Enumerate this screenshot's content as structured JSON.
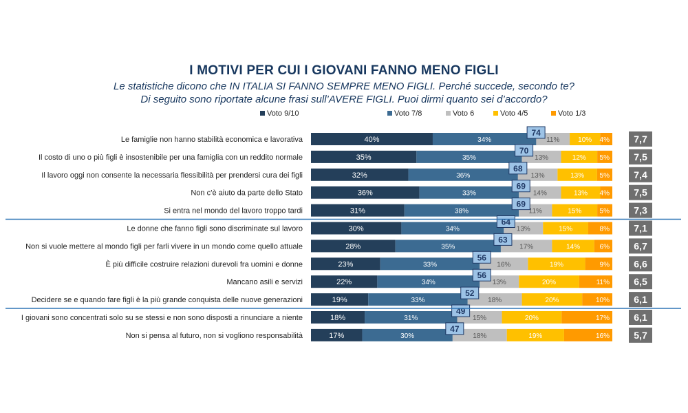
{
  "title": "I MOTIVI PER CUI I GIOVANI FANNO MENO FIGLI",
  "subtitle_line1": "Le statistiche dicono che IN ITALIA SI FANNO SEMPRE MENO FIGLI. Perché succede, secondo te?",
  "subtitle_line2": "Di seguito sono riportate alcune frasi sull’AVERE FIGLI. Puoi dirmi quanto sei d’accordo?",
  "chart_data": {
    "type": "bar",
    "stacked": "horizontal-100%",
    "legend_position": "top",
    "series": [
      {
        "name": "Voto 9/10",
        "color": "#243f5a"
      },
      {
        "name": "Voto 7/8",
        "color": "#3c6b92"
      },
      {
        "name": "Voto 6",
        "color": "#bfbfbf"
      },
      {
        "name": "Voto 4/5",
        "color": "#ffc000"
      },
      {
        "name": "Voto 1/3",
        "color": "#ff9a00"
      }
    ],
    "rows": [
      {
        "label": "Le famiglie non hanno stabilità economica e lavorativa",
        "values": [
          40,
          34,
          11,
          10,
          4
        ],
        "total": "74",
        "avg": "7,7"
      },
      {
        "label": "Il costo di uno o più figli è insostenibile per una famiglia con un reddito normale",
        "values": [
          35,
          35,
          13,
          12,
          5
        ],
        "total": "70",
        "avg": "7,5"
      },
      {
        "label": "Il lavoro oggi non consente la necessaria flessibilità per prendersi cura dei figli",
        "values": [
          32,
          36,
          13,
          13,
          5
        ],
        "total": "68",
        "avg": "7,4"
      },
      {
        "label": "Non c’è aiuto da parte dello Stato",
        "values": [
          36,
          33,
          14,
          13,
          4
        ],
        "total": "69",
        "avg": "7,5"
      },
      {
        "label": "Si entra nel mondo del lavoro troppo tardi",
        "values": [
          31,
          38,
          11,
          15,
          5
        ],
        "total": "69",
        "avg": "7,3"
      },
      {
        "label": "Le donne che fanno figli sono discriminate sul lavoro",
        "values": [
          30,
          34,
          13,
          15,
          8
        ],
        "total": "64",
        "avg": "7,1"
      },
      {
        "label": "Non si vuole mettere al mondo figli per farli vivere in un mondo come quello attuale",
        "values": [
          28,
          35,
          17,
          14,
          6
        ],
        "total": "63",
        "avg": "6,7"
      },
      {
        "label": "È più difficile costruire relazioni durevoli fra uomini e donne",
        "values": [
          23,
          33,
          16,
          19,
          9
        ],
        "total": "56",
        "avg": "6,6"
      },
      {
        "label": "Mancano asili e servizi",
        "values": [
          22,
          34,
          13,
          20,
          11
        ],
        "total": "56",
        "avg": "6,5"
      },
      {
        "label": "Decidere se e quando fare figli è la più grande conquista delle nuove generazioni",
        "values": [
          19,
          33,
          18,
          20,
          10
        ],
        "total": "52",
        "avg": "6,1"
      },
      {
        "label": "I giovani sono concentrati solo su se stessi e non sono disposti a rinunciare a niente",
        "values": [
          18,
          31,
          15,
          20,
          17
        ],
        "total": "49",
        "avg": "6,1"
      },
      {
        "label": "Non si pensa al futuro, non si vogliono responsabilità",
        "values": [
          17,
          30,
          18,
          19,
          16
        ],
        "total": "47",
        "avg": "5,7"
      }
    ],
    "separators_after_rows": [
      4,
      9
    ],
    "colors": {
      "separator": "#2e75b6",
      "total_box_fill": "#9dc3e6",
      "total_box_border": "#1f3864",
      "avg_box": "#6f6f6f"
    }
  }
}
